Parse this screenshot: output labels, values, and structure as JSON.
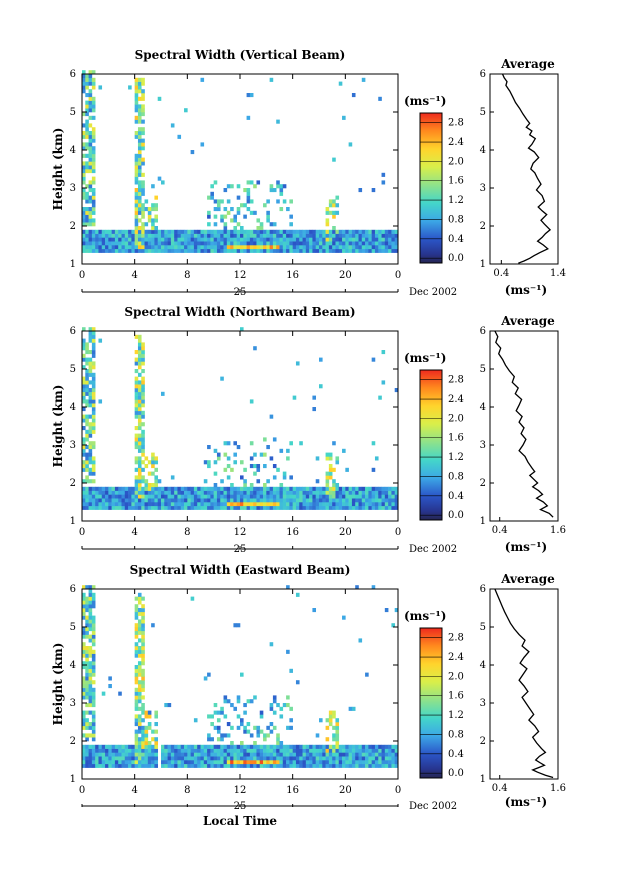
{
  "chart_data": [
    {
      "type": "heatmap",
      "title": "Spectral Width (Vertical Beam)",
      "ylabel": "Height (km)",
      "xlim": [
        0,
        24
      ],
      "ylim": [
        1,
        6
      ],
      "xticks": [
        "0",
        "4",
        "8",
        "12",
        "16",
        "20",
        "0"
      ],
      "yticks": [
        "1",
        "2",
        "3",
        "4",
        "5",
        "6"
      ],
      "date_day": "25",
      "date_label": "Dec 2002",
      "colorbar": {
        "label": "(ms⁻¹)",
        "ticks": [
          "0.0",
          "0.4",
          "0.8",
          "1.2",
          "1.6",
          "2.0",
          "2.4",
          "2.8"
        ],
        "range": [
          -0.1,
          3.0
        ]
      },
      "average_profile": {
        "title": "Average",
        "xlabel": "(ms⁻¹)",
        "xticks": [
          "0.4",
          "1.4"
        ],
        "xlim": [
          0.2,
          1.4
        ],
        "x": [
          0.42,
          0.45,
          0.5,
          0.48,
          0.55,
          0.6,
          0.65,
          0.72,
          0.78,
          0.85,
          0.9,
          0.84,
          0.94,
          0.9,
          1.0,
          0.94,
          0.88,
          0.98,
          1.06,
          0.96,
          0.92,
          0.99,
          1.04,
          1.1,
          1.02,
          1.12,
          1.16,
          1.05,
          1.12,
          1.2,
          1.1,
          1.16,
          1.26,
          1.18,
          1.12,
          1.04,
          1.14,
          1.22,
          1.08,
          0.98,
          0.9,
          0.8,
          0.7
        ],
        "y": [
          6.0,
          5.9,
          5.8,
          5.7,
          5.55,
          5.4,
          5.25,
          5.1,
          4.95,
          4.8,
          4.7,
          4.6,
          4.5,
          4.4,
          4.3,
          4.15,
          4.05,
          3.95,
          3.8,
          3.65,
          3.5,
          3.4,
          3.25,
          3.1,
          2.95,
          2.8,
          2.65,
          2.5,
          2.4,
          2.3,
          2.15,
          2.05,
          1.9,
          1.8,
          1.7,
          1.6,
          1.5,
          1.4,
          1.3,
          1.22,
          1.15,
          1.08,
          1.02
        ]
      }
    },
    {
      "type": "heatmap",
      "title": "Spectral Width (Northward Beam)",
      "ylabel": "Height (km)",
      "xlim": [
        0,
        24
      ],
      "ylim": [
        1,
        6
      ],
      "xticks": [
        "0",
        "4",
        "8",
        "12",
        "16",
        "20",
        "0"
      ],
      "yticks": [
        "1",
        "2",
        "3",
        "4",
        "5",
        "6"
      ],
      "date_day": "25",
      "date_label": "Dec 2002",
      "colorbar": {
        "label": "(ms⁻¹)",
        "ticks": [
          "0.0",
          "0.4",
          "0.8",
          "1.2",
          "1.6",
          "2.0",
          "2.4",
          "2.8"
        ],
        "range": [
          -0.1,
          3.0
        ]
      },
      "average_profile": {
        "title": "Average",
        "xlabel": "(ms⁻¹)",
        "xticks": [
          "0.4",
          "1.6"
        ],
        "xlim": [
          0.2,
          1.6
        ],
        "x": [
          0.3,
          0.36,
          0.32,
          0.42,
          0.38,
          0.46,
          0.52,
          0.6,
          0.7,
          0.66,
          0.78,
          0.72,
          0.85,
          0.8,
          0.74,
          0.86,
          0.8,
          0.9,
          0.84,
          0.94,
          0.88,
          0.8,
          0.92,
          0.98,
          1.06,
          1.12,
          1.02,
          1.1,
          1.18,
          1.08,
          1.2,
          1.28,
          1.16,
          1.3,
          1.38,
          1.24,
          1.42,
          1.5
        ],
        "y": [
          6.0,
          5.85,
          5.7,
          5.55,
          5.4,
          5.25,
          5.1,
          4.95,
          4.8,
          4.65,
          4.5,
          4.35,
          4.2,
          4.05,
          3.9,
          3.75,
          3.6,
          3.45,
          3.3,
          3.15,
          3.0,
          2.85,
          2.7,
          2.55,
          2.4,
          2.3,
          2.2,
          2.1,
          2.0,
          1.9,
          1.8,
          1.7,
          1.6,
          1.5,
          1.4,
          1.3,
          1.2,
          1.1
        ]
      }
    },
    {
      "type": "heatmap",
      "title": "Spectral Width (Eastward Beam)",
      "ylabel": "Height (km)",
      "xlabel": "Local Time",
      "xlim": [
        0,
        24
      ],
      "ylim": [
        1,
        6
      ],
      "xticks": [
        "0",
        "4",
        "8",
        "12",
        "16",
        "20",
        "0"
      ],
      "yticks": [
        "1",
        "2",
        "3",
        "4",
        "5",
        "6"
      ],
      "date_day": "25",
      "date_label": "Dec 2002",
      "colorbar": {
        "label": "(ms⁻¹)",
        "ticks": [
          "0.0",
          "0.4",
          "0.8",
          "1.2",
          "1.6",
          "2.0",
          "2.4",
          "2.8"
        ],
        "range": [
          -0.1,
          3.0
        ]
      },
      "average_profile": {
        "title": "Average",
        "xlabel": "(ms⁻¹)",
        "xticks": [
          "0.4",
          "1.6"
        ],
        "xlim": [
          0.2,
          1.6
        ],
        "x": [
          0.3,
          0.35,
          0.4,
          0.45,
          0.5,
          0.56,
          0.62,
          0.7,
          0.8,
          0.92,
          0.86,
          1.0,
          0.9,
          0.82,
          0.96,
          0.88,
          0.8,
          0.9,
          0.98,
          0.86,
          0.94,
          1.02,
          1.1,
          1.0,
          1.12,
          1.2,
          1.08,
          1.16,
          1.26,
          1.34,
          1.22,
          1.14,
          1.24,
          1.32,
          1.2,
          1.08,
          1.18,
          1.34,
          1.5
        ],
        "y": [
          6.0,
          5.85,
          5.7,
          5.55,
          5.4,
          5.25,
          5.1,
          4.95,
          4.8,
          4.65,
          4.5,
          4.35,
          4.2,
          4.05,
          3.9,
          3.75,
          3.6,
          3.45,
          3.3,
          3.15,
          3.0,
          2.85,
          2.7,
          2.55,
          2.4,
          2.25,
          2.1,
          1.95,
          1.8,
          1.7,
          1.6,
          1.5,
          1.42,
          1.36,
          1.3,
          1.24,
          1.18,
          1.1,
          1.04
        ]
      }
    }
  ]
}
